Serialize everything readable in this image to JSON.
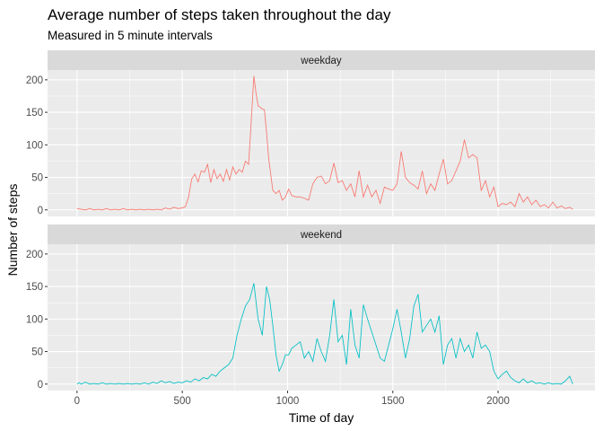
{
  "chart_data": {
    "type": "line",
    "title": "Average number of steps taken throughout the day",
    "subtitle": "Measured in 5 minute intervals",
    "xlabel": "Time of day",
    "ylabel": "Number of steps",
    "xlim": [
      -140,
      2460
    ],
    "ylim": [
      -10,
      215
    ],
    "x_ticks": [
      0,
      500,
      1000,
      1500,
      2000
    ],
    "y_ticks": [
      0,
      50,
      100,
      150,
      200
    ],
    "grid": true,
    "legend": "none",
    "facets": [
      {
        "label": "weekday",
        "color": "#F8766D",
        "points": [
          [
            0,
            2
          ],
          [
            20,
            1
          ],
          [
            40,
            0
          ],
          [
            60,
            2
          ],
          [
            80,
            0
          ],
          [
            100,
            1
          ],
          [
            120,
            0
          ],
          [
            140,
            2
          ],
          [
            160,
            0
          ],
          [
            180,
            1
          ],
          [
            200,
            0
          ],
          [
            220,
            2
          ],
          [
            240,
            0
          ],
          [
            260,
            1
          ],
          [
            280,
            0
          ],
          [
            300,
            1
          ],
          [
            320,
            0
          ],
          [
            340,
            1
          ],
          [
            360,
            0
          ],
          [
            380,
            1
          ],
          [
            400,
            0
          ],
          [
            420,
            3
          ],
          [
            440,
            1
          ],
          [
            460,
            4
          ],
          [
            480,
            2
          ],
          [
            500,
            3
          ],
          [
            515,
            5
          ],
          [
            530,
            20
          ],
          [
            545,
            48
          ],
          [
            560,
            55
          ],
          [
            575,
            43
          ],
          [
            590,
            60
          ],
          [
            605,
            58
          ],
          [
            620,
            70
          ],
          [
            635,
            42
          ],
          [
            650,
            62
          ],
          [
            665,
            48
          ],
          [
            680,
            55
          ],
          [
            695,
            44
          ],
          [
            710,
            62
          ],
          [
            725,
            46
          ],
          [
            740,
            66
          ],
          [
            755,
            55
          ],
          [
            770,
            62
          ],
          [
            785,
            58
          ],
          [
            800,
            75
          ],
          [
            815,
            70
          ],
          [
            830,
            150
          ],
          [
            840,
            206
          ],
          [
            850,
            180
          ],
          [
            860,
            160
          ],
          [
            870,
            158
          ],
          [
            880,
            155
          ],
          [
            890,
            154
          ],
          [
            900,
            120
          ],
          [
            910,
            80
          ],
          [
            920,
            55
          ],
          [
            930,
            30
          ],
          [
            945,
            25
          ],
          [
            960,
            30
          ],
          [
            975,
            15
          ],
          [
            990,
            20
          ],
          [
            1005,
            32
          ],
          [
            1020,
            22
          ],
          [
            1040,
            20
          ],
          [
            1060,
            20
          ],
          [
            1080,
            18
          ],
          [
            1100,
            15
          ],
          [
            1120,
            40
          ],
          [
            1140,
            50
          ],
          [
            1160,
            52
          ],
          [
            1180,
            40
          ],
          [
            1200,
            45
          ],
          [
            1220,
            72
          ],
          [
            1240,
            42
          ],
          [
            1260,
            45
          ],
          [
            1280,
            30
          ],
          [
            1300,
            40
          ],
          [
            1320,
            20
          ],
          [
            1340,
            60
          ],
          [
            1360,
            20
          ],
          [
            1380,
            38
          ],
          [
            1400,
            20
          ],
          [
            1420,
            30
          ],
          [
            1440,
            10
          ],
          [
            1460,
            35
          ],
          [
            1480,
            32
          ],
          [
            1500,
            30
          ],
          [
            1520,
            40
          ],
          [
            1540,
            90
          ],
          [
            1560,
            50
          ],
          [
            1580,
            42
          ],
          [
            1600,
            38
          ],
          [
            1620,
            32
          ],
          [
            1640,
            60
          ],
          [
            1660,
            25
          ],
          [
            1680,
            40
          ],
          [
            1700,
            30
          ],
          [
            1720,
            55
          ],
          [
            1740,
            78
          ],
          [
            1760,
            40
          ],
          [
            1780,
            45
          ],
          [
            1800,
            60
          ],
          [
            1820,
            75
          ],
          [
            1840,
            108
          ],
          [
            1860,
            80
          ],
          [
            1880,
            85
          ],
          [
            1900,
            80
          ],
          [
            1920,
            30
          ],
          [
            1940,
            45
          ],
          [
            1960,
            20
          ],
          [
            1980,
            35
          ],
          [
            2000,
            5
          ],
          [
            2020,
            10
          ],
          [
            2040,
            8
          ],
          [
            2060,
            12
          ],
          [
            2080,
            5
          ],
          [
            2100,
            25
          ],
          [
            2120,
            12
          ],
          [
            2140,
            20
          ],
          [
            2160,
            8
          ],
          [
            2180,
            15
          ],
          [
            2200,
            5
          ],
          [
            2220,
            8
          ],
          [
            2240,
            3
          ],
          [
            2260,
            12
          ],
          [
            2280,
            3
          ],
          [
            2300,
            6
          ],
          [
            2320,
            2
          ],
          [
            2340,
            4
          ],
          [
            2355,
            1
          ]
        ]
      },
      {
        "label": "weekend",
        "color": "#00BFC4",
        "points": [
          [
            0,
            0
          ],
          [
            10,
            2
          ],
          [
            20,
            0
          ],
          [
            40,
            3
          ],
          [
            60,
            0
          ],
          [
            80,
            1
          ],
          [
            100,
            0
          ],
          [
            120,
            2
          ],
          [
            140,
            0
          ],
          [
            160,
            1
          ],
          [
            180,
            0
          ],
          [
            200,
            1
          ],
          [
            220,
            0
          ],
          [
            240,
            1
          ],
          [
            260,
            0
          ],
          [
            280,
            1
          ],
          [
            300,
            0
          ],
          [
            320,
            2
          ],
          [
            340,
            0
          ],
          [
            360,
            3
          ],
          [
            380,
            1
          ],
          [
            400,
            5
          ],
          [
            420,
            2
          ],
          [
            440,
            4
          ],
          [
            460,
            1
          ],
          [
            480,
            3
          ],
          [
            500,
            2
          ],
          [
            520,
            5
          ],
          [
            540,
            3
          ],
          [
            560,
            8
          ],
          [
            580,
            5
          ],
          [
            600,
            10
          ],
          [
            620,
            8
          ],
          [
            640,
            15
          ],
          [
            660,
            12
          ],
          [
            680,
            20
          ],
          [
            700,
            25
          ],
          [
            720,
            30
          ],
          [
            740,
            40
          ],
          [
            760,
            75
          ],
          [
            780,
            100
          ],
          [
            800,
            120
          ],
          [
            820,
            130
          ],
          [
            840,
            155
          ],
          [
            860,
            100
          ],
          [
            880,
            75
          ],
          [
            900,
            150
          ],
          [
            915,
            130
          ],
          [
            930,
            90
          ],
          [
            945,
            45
          ],
          [
            960,
            20
          ],
          [
            975,
            30
          ],
          [
            990,
            45
          ],
          [
            1005,
            45
          ],
          [
            1020,
            55
          ],
          [
            1040,
            60
          ],
          [
            1060,
            65
          ],
          [
            1080,
            40
          ],
          [
            1100,
            50
          ],
          [
            1120,
            35
          ],
          [
            1140,
            70
          ],
          [
            1160,
            50
          ],
          [
            1180,
            35
          ],
          [
            1200,
            75
          ],
          [
            1220,
            130
          ],
          [
            1240,
            65
          ],
          [
            1260,
            75
          ],
          [
            1280,
            30
          ],
          [
            1300,
            115
          ],
          [
            1320,
            60
          ],
          [
            1340,
            40
          ],
          [
            1360,
            122
          ],
          [
            1380,
            100
          ],
          [
            1400,
            80
          ],
          [
            1420,
            60
          ],
          [
            1440,
            40
          ],
          [
            1460,
            35
          ],
          [
            1480,
            60
          ],
          [
            1500,
            85
          ],
          [
            1520,
            115
          ],
          [
            1540,
            80
          ],
          [
            1560,
            40
          ],
          [
            1580,
            70
          ],
          [
            1600,
            120
          ],
          [
            1620,
            138
          ],
          [
            1640,
            80
          ],
          [
            1660,
            90
          ],
          [
            1680,
            100
          ],
          [
            1700,
            80
          ],
          [
            1720,
            105
          ],
          [
            1740,
            30
          ],
          [
            1760,
            60
          ],
          [
            1780,
            70
          ],
          [
            1800,
            40
          ],
          [
            1820,
            70
          ],
          [
            1840,
            50
          ],
          [
            1860,
            60
          ],
          [
            1880,
            40
          ],
          [
            1900,
            80
          ],
          [
            1920,
            55
          ],
          [
            1940,
            60
          ],
          [
            1960,
            50
          ],
          [
            1980,
            20
          ],
          [
            2000,
            8
          ],
          [
            2020,
            15
          ],
          [
            2040,
            20
          ],
          [
            2060,
            10
          ],
          [
            2080,
            5
          ],
          [
            2100,
            2
          ],
          [
            2120,
            8
          ],
          [
            2140,
            2
          ],
          [
            2160,
            5
          ],
          [
            2180,
            1
          ],
          [
            2200,
            2
          ],
          [
            2220,
            0
          ],
          [
            2240,
            2
          ],
          [
            2260,
            0
          ],
          [
            2280,
            1
          ],
          [
            2300,
            0
          ],
          [
            2320,
            5
          ],
          [
            2340,
            12
          ],
          [
            2355,
            0
          ]
        ]
      }
    ]
  }
}
